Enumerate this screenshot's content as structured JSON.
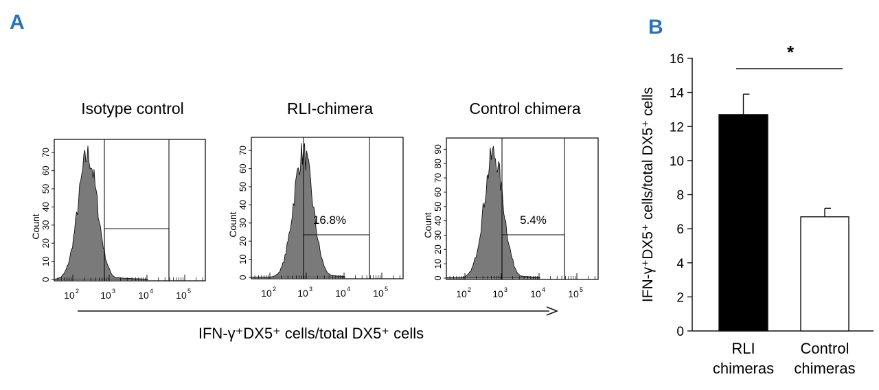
{
  "panel_a_letter": "A",
  "panel_b_letter": "B",
  "colors": {
    "letters": "#2b72b6",
    "hist_fill": "#7a7a7a",
    "bar_rli": "#000000",
    "bar_control": "#ffffff"
  },
  "chart_data": [
    {
      "type": "histogram",
      "x_axis_label": "IFN-γ⁺DX5⁺ cells/total DX5⁺ cells",
      "y_label": "Count",
      "x_ticks": [
        "10",
        "10",
        "10",
        "10"
      ],
      "x_tick_exponents": [
        "2",
        "3",
        "4",
        "5"
      ],
      "panels": [
        {
          "title": "Isotype control",
          "gate_percent": "",
          "y_ticks": [
            "0",
            "10",
            "20",
            "30",
            "40",
            "50",
            "60",
            "70"
          ],
          "ymax": 75,
          "peak": 0.28
        },
        {
          "title": "RLI-chimera",
          "gate_percent": "16.8%",
          "y_ticks": [
            "0",
            "10",
            "20",
            "30",
            "40",
            "50",
            "60",
            "70"
          ],
          "ymax": 75,
          "peak": 0.52
        },
        {
          "title": "Control chimera",
          "gate_percent": "5.4%",
          "y_ticks": [
            "0",
            "10",
            "20",
            "30",
            "40",
            "50",
            "60",
            "70",
            "80",
            "90"
          ],
          "ymax": 95,
          "peak": 0.46
        }
      ]
    },
    {
      "type": "bar",
      "ylabel": "IFN-γ⁺DX5⁺ cells/total DX5⁺ cells",
      "categories": [
        [
          "RLI",
          "chimeras"
        ],
        [
          "Control",
          "chimeras"
        ]
      ],
      "values": [
        12.7,
        6.7
      ],
      "errors": [
        1.2,
        0.5
      ],
      "ylim": [
        0,
        16
      ],
      "y_ticks": [
        "0",
        "2",
        "4",
        "6",
        "8",
        "10",
        "12",
        "14",
        "16"
      ],
      "significance": "*"
    }
  ]
}
